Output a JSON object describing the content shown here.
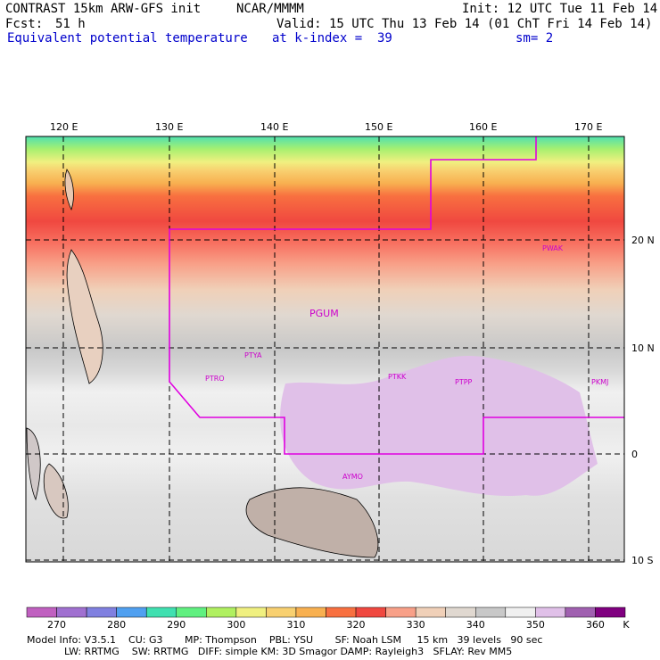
{
  "header": {
    "title": "CONTRAST 15km ARW-GFS init",
    "org": "NCAR/MMMM",
    "init": "Init: 12 UTC Tue 11 Feb 14",
    "fcst_label": "Fcst:",
    "fcst_value": "51 h",
    "valid": "Valid: 15 UTC Thu 13 Feb 14 (01 ChT Fri 14 Feb 14)",
    "field": "Equivalent potential temperature",
    "level": "at k-index =  39",
    "smooth": "sm= 2"
  },
  "axes": {
    "lon_labels": [
      "120 E",
      "130 E",
      "140 E",
      "150 E",
      "160 E",
      "170 E"
    ],
    "lat_labels": [
      "20 N",
      "10 N",
      "0",
      "10 S"
    ]
  },
  "stations": [
    "PGUM",
    "PTYA",
    "PTRO",
    "PTKK",
    "PTPP",
    "PKMJ",
    "PWAK",
    "AYMO"
  ],
  "colorbar": {
    "labels": [
      "270",
      "280",
      "290",
      "300",
      "310",
      "320",
      "330",
      "340",
      "350",
      "360"
    ],
    "unit": "K",
    "colors": [
      "#c060c0",
      "#a070d0",
      "#8080e0",
      "#50a0f0",
      "#40e0b0",
      "#60f080",
      "#b0f060",
      "#f0f080",
      "#f8d070",
      "#f8b050",
      "#f87040",
      "#f04840",
      "#f8a088",
      "#f0d0b8",
      "#e0d8d0",
      "#c8c8c8",
      "#f0f0f0",
      "#e0c0e8",
      "#a060b0",
      "#800080"
    ]
  },
  "footer": {
    "line1": "Model Info: V3.5.1    CU: G3       MP: Thompson    PBL: YSU       SF: Noah LSM     15 km   39 levels   90 sec",
    "line2": "LW: RRTMG    SW: RRTMG   DIFF: simple KM: 3D Smagor DAMP: Rayleigh3   SFLAY: Rev MM5"
  }
}
